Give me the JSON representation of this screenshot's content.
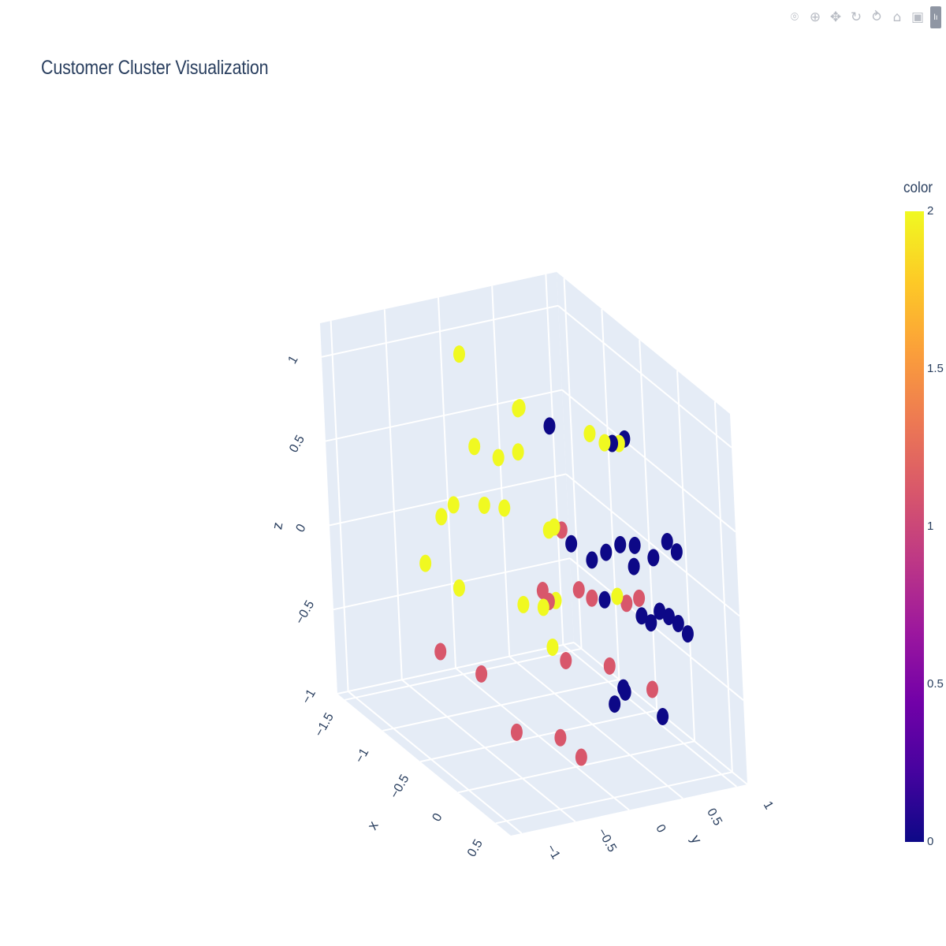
{
  "modebar": {
    "buttons": [
      {
        "name": "camera-icon",
        "glyph": "⌾"
      },
      {
        "name": "zoom-icon",
        "glyph": "⊕"
      },
      {
        "name": "pan-icon",
        "glyph": "✥"
      },
      {
        "name": "orbit-rotation-icon",
        "glyph": "↻"
      },
      {
        "name": "turntable-rotation-icon",
        "glyph": "⥁"
      },
      {
        "name": "reset-camera-icon",
        "glyph": "⌂"
      },
      {
        "name": "reset-last-save-icon",
        "glyph": "▣"
      }
    ]
  },
  "chart_data": {
    "type": "scatter3d",
    "title": "Customer Cluster Visualization",
    "axes": {
      "x": {
        "label": "x",
        "ticks": [
          "−1.5",
          "−1",
          "−0.5",
          "0",
          "0.5"
        ],
        "range": [
          -1.6,
          0.7
        ]
      },
      "y": {
        "label": "y",
        "ticks": [
          "−1",
          "−0.5",
          "0",
          "0.5",
          "1"
        ],
        "range": [
          -1.1,
          1.1
        ]
      },
      "z": {
        "label": "z",
        "ticks": [
          "−1",
          "−0.5",
          "0",
          "0.5",
          "1"
        ],
        "range": [
          -1.0,
          1.2
        ]
      }
    },
    "colorbar": {
      "title": "color",
      "ticks": [
        "0",
        "0.5",
        "1",
        "1.5",
        "2"
      ],
      "colorscale": [
        "#0d0887",
        "#46039f",
        "#7201a8",
        "#9c179e",
        "#bd3786",
        "#d8576b",
        "#ed7953",
        "#fb9f3a",
        "#fdca26",
        "#f0f921"
      ],
      "range": [
        0,
        2
      ]
    },
    "cluster_colors": {
      "0": "#0d0887",
      "1": "#d8576b",
      "2": "#f0f921"
    },
    "points": [
      {
        "x": -0.6,
        "y": -0.5,
        "z": 1.3,
        "c": 2
      },
      {
        "x": -0.4,
        "y": -0.1,
        "z": 1.0,
        "c": 2
      },
      {
        "x": -0.5,
        "y": -0.05,
        "z": 0.95,
        "c": 2
      },
      {
        "x": -0.3,
        "y": 0.1,
        "z": 0.9,
        "c": 0
      },
      {
        "x": -0.2,
        "y": 0.4,
        "z": 0.85,
        "c": 2
      },
      {
        "x": -0.15,
        "y": 0.5,
        "z": 0.8,
        "c": 2
      },
      {
        "x": -0.1,
        "y": 0.6,
        "z": 0.8,
        "c": 2
      },
      {
        "x": -0.1,
        "y": 0.65,
        "z": 0.82,
        "c": 0
      },
      {
        "x": -0.12,
        "y": 0.55,
        "z": 0.8,
        "c": 0
      },
      {
        "x": -0.9,
        "y": -0.2,
        "z": 0.6,
        "c": 2
      },
      {
        "x": -0.8,
        "y": -0.05,
        "z": 0.55,
        "c": 2
      },
      {
        "x": -0.6,
        "y": 0.0,
        "z": 0.65,
        "c": 2
      },
      {
        "x": -0.3,
        "y": 0.1,
        "z": 0.3,
        "c": 2
      },
      {
        "x": -0.45,
        "y": 0.15,
        "z": 0.22,
        "c": 2
      },
      {
        "x": -0.35,
        "y": 0.2,
        "z": 0.25,
        "c": 1
      },
      {
        "x": -0.3,
        "y": 0.25,
        "z": 0.18,
        "c": 0
      },
      {
        "x": -0.1,
        "y": 0.3,
        "z": 0.15,
        "c": 0
      },
      {
        "x": -0.05,
        "y": 0.4,
        "z": 0.2,
        "c": 0
      },
      {
        "x": 0.0,
        "y": 0.5,
        "z": 0.25,
        "c": 0
      },
      {
        "x": 0.05,
        "y": 0.6,
        "z": 0.25,
        "c": 0
      },
      {
        "x": 0.1,
        "y": 0.55,
        "z": 0.15,
        "c": 0
      },
      {
        "x": 0.15,
        "y": 0.7,
        "z": 0.2,
        "c": 0
      },
      {
        "x": 0.2,
        "y": 0.8,
        "z": 0.3,
        "c": 0
      },
      {
        "x": 0.25,
        "y": 0.85,
        "z": 0.25,
        "c": 0
      },
      {
        "x": -1.4,
        "y": -0.2,
        "z": 0.0,
        "c": 2
      },
      {
        "x": -1.3,
        "y": -0.15,
        "z": 0.1,
        "c": 2
      },
      {
        "x": -1.1,
        "y": 0.0,
        "z": 0.15,
        "c": 2
      },
      {
        "x": -0.9,
        "y": 0.05,
        "z": 0.2,
        "c": 2
      },
      {
        "x": -0.5,
        "y": 0.1,
        "z": -0.15,
        "c": 1
      },
      {
        "x": -0.3,
        "y": 0.3,
        "z": -0.1,
        "c": 1
      },
      {
        "x": -0.2,
        "y": 0.35,
        "z": -0.12,
        "c": 1
      },
      {
        "x": -0.1,
        "y": 0.4,
        "z": -0.1,
        "c": 0
      },
      {
        "x": 0.0,
        "y": 0.45,
        "z": -0.05,
        "c": 2
      },
      {
        "x": 0.05,
        "y": 0.5,
        "z": -0.08,
        "c": 1
      },
      {
        "x": 0.15,
        "y": 0.55,
        "z": -0.02,
        "c": 1
      },
      {
        "x": 0.1,
        "y": 0.6,
        "z": -0.15,
        "c": 0
      },
      {
        "x": 0.15,
        "y": 0.65,
        "z": -0.18,
        "c": 0
      },
      {
        "x": 0.2,
        "y": 0.7,
        "z": -0.1,
        "c": 0
      },
      {
        "x": 0.25,
        "y": 0.75,
        "z": -0.12,
        "c": 0
      },
      {
        "x": 0.3,
        "y": 0.8,
        "z": -0.15,
        "c": 0
      },
      {
        "x": 0.35,
        "y": 0.85,
        "z": -0.2,
        "c": 0
      },
      {
        "x": -0.5,
        "y": 0.1,
        "z": -0.25,
        "c": 2
      },
      {
        "x": -0.45,
        "y": 0.12,
        "z": -0.2,
        "c": 1
      },
      {
        "x": -0.4,
        "y": 0.15,
        "z": -0.18,
        "c": 2
      },
      {
        "x": -0.7,
        "y": 0.05,
        "z": -0.3,
        "c": 2
      },
      {
        "x": -1.5,
        "y": -0.3,
        "z": -0.3,
        "c": 2
      },
      {
        "x": -1.2,
        "y": -0.2,
        "z": -0.35,
        "c": 2
      },
      {
        "x": -0.4,
        "y": 0.1,
        "z": -0.45,
        "c": 2
      },
      {
        "x": -0.3,
        "y": 0.15,
        "z": -0.5,
        "c": 1
      },
      {
        "x": 0.0,
        "y": 0.35,
        "z": -0.45,
        "c": 1
      },
      {
        "x": 0.1,
        "y": 0.4,
        "z": -0.55,
        "c": 0
      },
      {
        "x": 0.05,
        "y": 0.45,
        "z": -0.6,
        "c": 0
      },
      {
        "x": 0.0,
        "y": 0.38,
        "z": -0.68,
        "c": 0
      },
      {
        "x": 0.2,
        "y": 0.6,
        "z": -0.55,
        "c": 1
      },
      {
        "x": 0.25,
        "y": 0.65,
        "z": -0.7,
        "c": 0
      },
      {
        "x": -1.2,
        "y": -0.4,
        "z": -0.7,
        "c": 1
      },
      {
        "x": -0.8,
        "y": -0.3,
        "z": -0.7,
        "c": 1
      },
      {
        "x": -0.5,
        "y": -0.2,
        "z": -0.95,
        "c": 1
      },
      {
        "x": -0.2,
        "y": 0.0,
        "z": -0.9,
        "c": 1
      },
      {
        "x": 0.0,
        "y": 0.05,
        "z": -0.95,
        "c": 1
      }
    ]
  }
}
